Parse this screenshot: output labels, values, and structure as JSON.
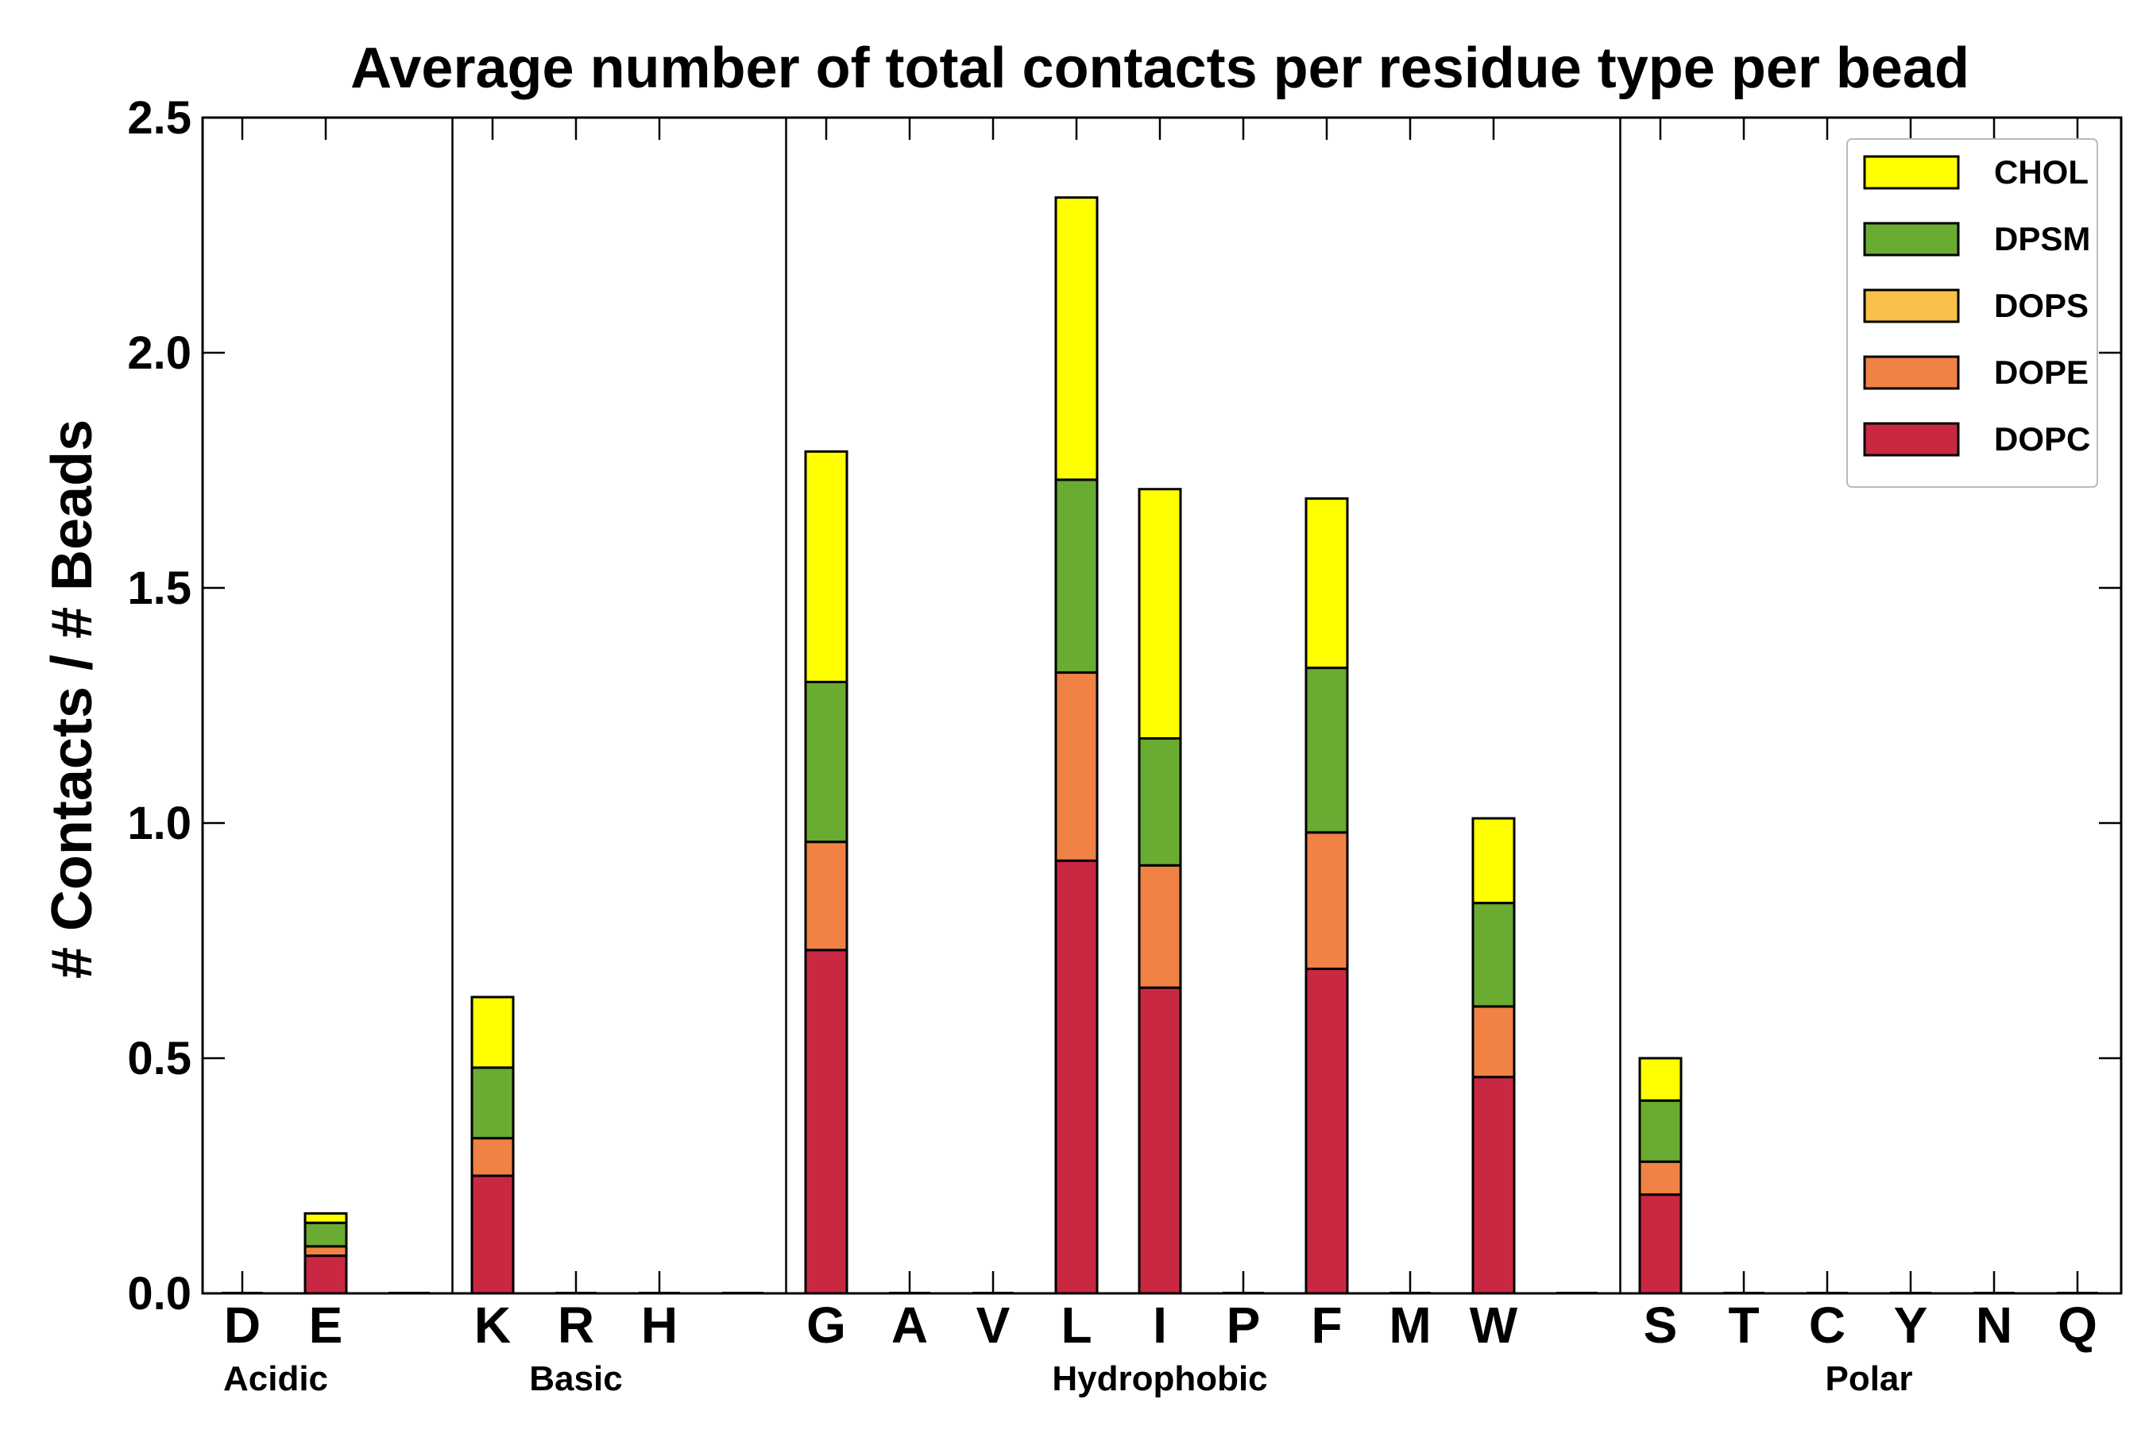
{
  "chart_data": {
    "type": "bar",
    "stacked": true,
    "title": "Average number of total contacts per residue type per bead",
    "xlabel": "",
    "ylabel": "# Contacts / # Beads",
    "ylim": [
      0,
      2.5
    ],
    "yticks": [
      "0.0",
      "0.5",
      "1.0",
      "1.5",
      "2.0",
      "2.5"
    ],
    "ytick_values": [
      0,
      0.5,
      1.0,
      1.5,
      2.0,
      2.5
    ],
    "grid": false,
    "legend_position": "top-right",
    "categories": [
      "D",
      "E",
      "",
      "K",
      "R",
      "H",
      "",
      "G",
      "A",
      "V",
      "L",
      "I",
      "P",
      "F",
      "M",
      "W",
      "",
      "S",
      "T",
      "C",
      "Y",
      "N",
      "Q"
    ],
    "group_labels": [
      {
        "label": "Acidic",
        "center_slot": 0.4
      },
      {
        "label": "Basic",
        "center_slot": 4.0
      },
      {
        "label": "Hydrophobic",
        "center_slot": 11.0
      },
      {
        "label": "Polar",
        "center_slot": 19.5
      }
    ],
    "separators_after_slot": [
      2,
      6,
      16
    ],
    "series": [
      {
        "name": "DOPC",
        "color": "#c82842",
        "values": [
          0,
          0.08,
          0,
          0.25,
          0,
          0,
          0,
          0.73,
          0,
          0,
          0.92,
          0.65,
          0,
          0.69,
          0,
          0.46,
          0,
          0.21,
          0,
          0,
          0,
          0,
          0
        ]
      },
      {
        "name": "DOPE",
        "color": "#ef8244",
        "values": [
          0,
          0.02,
          0,
          0.08,
          0,
          0,
          0,
          0.23,
          0,
          0,
          0.4,
          0.26,
          0,
          0.29,
          0,
          0.15,
          0,
          0.07,
          0,
          0,
          0,
          0,
          0
        ]
      },
      {
        "name": "DOPS",
        "color": "#f9c04a",
        "values": [
          0,
          0.0,
          0,
          0.0,
          0,
          0,
          0,
          0.0,
          0,
          0,
          0.0,
          0.0,
          0,
          0.0,
          0,
          0.0,
          0,
          0.0,
          0,
          0,
          0,
          0,
          0
        ]
      },
      {
        "name": "DPSM",
        "color": "#6aab32",
        "values": [
          0,
          0.05,
          0,
          0.15,
          0,
          0,
          0,
          0.34,
          0,
          0,
          0.41,
          0.27,
          0,
          0.35,
          0,
          0.22,
          0,
          0.13,
          0,
          0,
          0,
          0,
          0
        ]
      },
      {
        "name": "CHOL",
        "color": "#ffff00",
        "values": [
          0,
          0.02,
          0,
          0.15,
          0,
          0,
          0,
          0.49,
          0,
          0,
          0.6,
          0.53,
          0,
          0.36,
          0,
          0.18,
          0,
          0.09,
          0,
          0,
          0,
          0,
          0
        ]
      }
    ],
    "legend_order": [
      "CHOL",
      "DPSM",
      "DOPS",
      "DOPE",
      "DOPC"
    ]
  }
}
